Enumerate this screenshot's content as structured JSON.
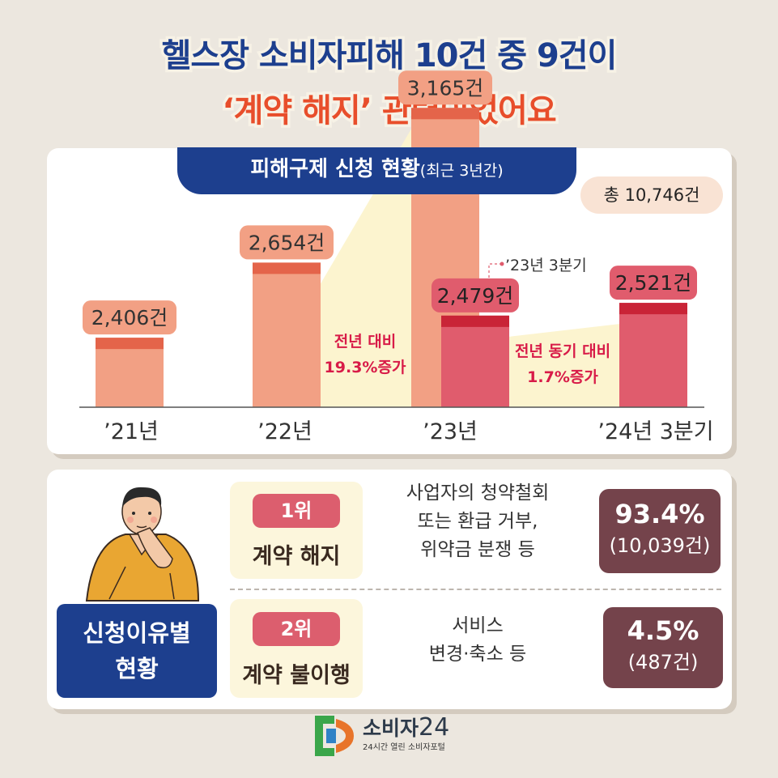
{
  "title": {
    "line1": "헬스장 소비자피해 10건 중 9건이",
    "line2": "‘계약 해지’ 관련이었어요"
  },
  "chart_tab": {
    "main": "피해구제 신청 현황",
    "sub": "(최근 3년간)"
  },
  "total": "총 10,746건",
  "chart_data": {
    "type": "bar",
    "title": "피해구제 신청 현황(최근 3년간)",
    "categories": [
      "’21년",
      "’22년",
      "’23년",
      "’24년 3분기"
    ],
    "series": [
      {
        "values": [
          2406,
          2654,
          3165,
          null
        ],
        "labels": [
          "2,406건",
          "2,654건",
          "3,165건",
          ""
        ]
      },
      {
        "values": [
          null,
          null,
          2479,
          2521
        ],
        "labels": [
          "",
          "",
          "2,479건",
          "2,521건"
        ]
      }
    ],
    "annotations": {
      "q3_2023": "’23년 3분기",
      "yoy": [
        "전년 대비",
        "19.3%증가"
      ],
      "same_period": [
        "전년 동기 대비",
        "1.7%증가"
      ]
    },
    "colors": {
      "annual": "#f2a084",
      "annual_cap": "#e4644a",
      "q3": "#e05c6d",
      "q3_cap": "#c92437",
      "band": "#fcf4cf"
    }
  },
  "reasons": {
    "label_line1": "신청이유별",
    "label_line2": "현황",
    "items": [
      {
        "rank": "1위",
        "name": "계약 해지",
        "desc": [
          "사업자의 청약철회",
          "또는 환급 거부,",
          "위약금 분쟁 등"
        ],
        "percent": "93.4%",
        "count": "(10,039건)"
      },
      {
        "rank": "2위",
        "name": "계약 불이행",
        "desc": [
          "서비스",
          "변경·축소 등"
        ],
        "percent": "4.5%",
        "count": "(487건)"
      }
    ]
  },
  "logo": {
    "name": "소비자",
    "number": "24",
    "tagline": "24시간 열린 소비자포털"
  }
}
